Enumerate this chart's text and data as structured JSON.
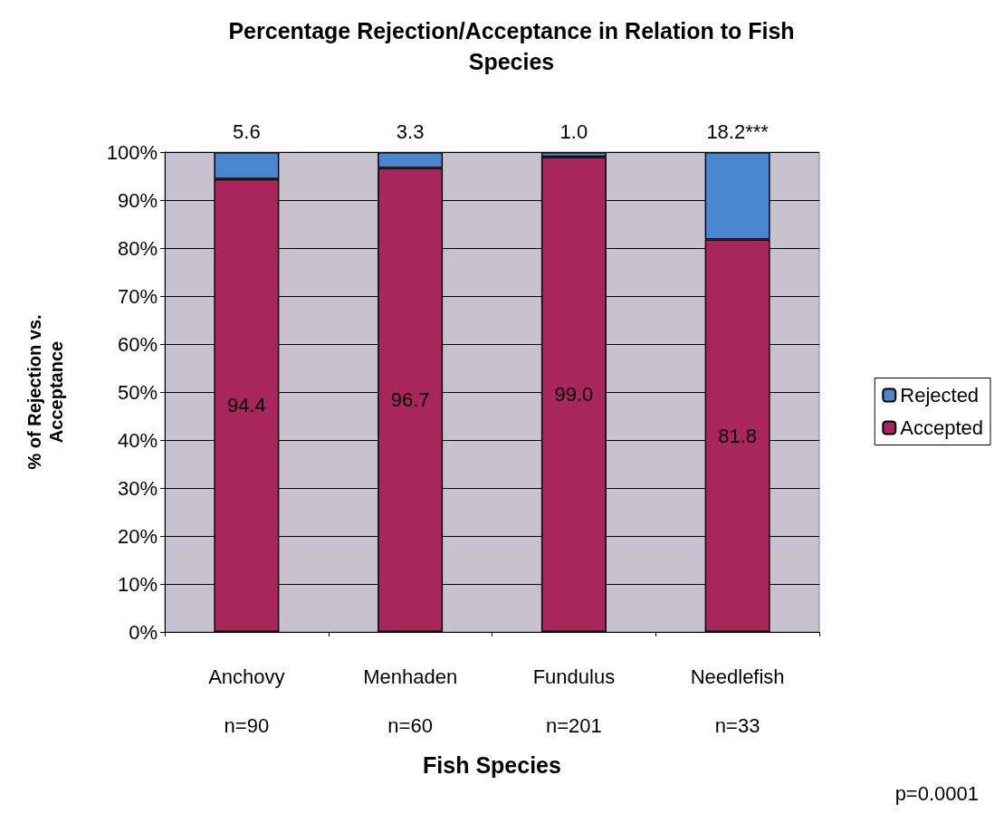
{
  "chart_data": {
    "type": "bar",
    "stacked": true,
    "title": "Percentage Rejection/Acceptance in Relation to Fish Species",
    "categories": [
      "Anchovy\nn=90",
      "Menhaden\nn=60",
      "Fundulus\nn=201",
      "Needlefish\nn=33"
    ],
    "series": [
      {
        "name": "Accepted",
        "color": "#a8265c",
        "values": [
          94.4,
          96.7,
          99.0,
          81.8
        ],
        "value_labels": [
          "94.4",
          "96.7",
          "99.0",
          "81.8"
        ]
      },
      {
        "name": "Rejected",
        "color": "#4a86d0",
        "values": [
          5.6,
          3.3,
          1.0,
          18.2
        ],
        "value_labels": [
          "5.6",
          "3.3",
          "1.0",
          "18.2***"
        ]
      }
    ],
    "ylim": [
      0,
      100
    ],
    "yticks": [
      {
        "value": 0,
        "label": "0%"
      },
      {
        "value": 10,
        "label": "10%"
      },
      {
        "value": 20,
        "label": "20%"
      },
      {
        "value": 30,
        "label": "30%"
      },
      {
        "value": 40,
        "label": "40%"
      },
      {
        "value": 50,
        "label": "50%"
      },
      {
        "value": 60,
        "label": "60%"
      },
      {
        "value": 70,
        "label": "70%"
      },
      {
        "value": 80,
        "label": "80%"
      },
      {
        "value": 90,
        "label": "90%"
      },
      {
        "value": 100,
        "label": "100%"
      }
    ],
    "xlabel": "Fish Species",
    "ylabel": "% of Rejection vs.\nAcceptance",
    "grid": "y",
    "legend": "right",
    "annotations": [
      "p=0.0001"
    ]
  }
}
